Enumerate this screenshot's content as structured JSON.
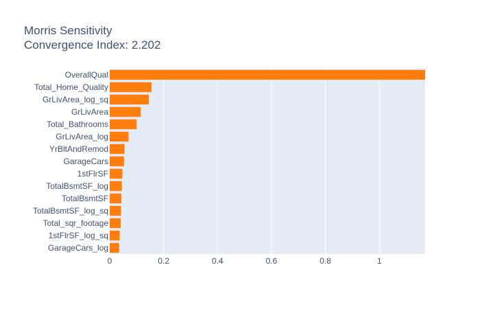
{
  "chart_data": {
    "type": "bar",
    "orientation": "horizontal",
    "title": "Morris Sensitivity",
    "subtitle": "Convergence Index: 2.202",
    "categories": [
      "OverallQual",
      "Total_Home_Quality",
      "GrLivArea_log_sq",
      "GrLivArea",
      "Total_Bathrooms",
      "GrLivArea_log",
      "YrBltAndRemod",
      "GarageCars",
      "1stFlrSF",
      "TotalBsmtSF_log",
      "TotalBsmtSF",
      "TotalBsmtSF_log_sq",
      "Total_sqr_footage",
      "1stFlrSF_log_sq",
      "GarageCars_log"
    ],
    "values": [
      1.17,
      0.155,
      0.145,
      0.115,
      0.1,
      0.07,
      0.055,
      0.053,
      0.047,
      0.045,
      0.043,
      0.042,
      0.041,
      0.037,
      0.035
    ],
    "x_ticks": [
      0,
      0.2,
      0.4,
      0.6,
      0.8,
      1
    ],
    "x_tick_labels": [
      "0",
      "0.2",
      "0.4",
      "0.6",
      "0.8",
      "1"
    ],
    "xlim": [
      0,
      1.17
    ],
    "xlabel": "",
    "ylabel": "",
    "grid": true,
    "legend": "none",
    "colors": {
      "bar": "#ff7f0e",
      "plot_background": "#e5ecf6",
      "grid": "#ffffff",
      "text": "#3f4f75"
    }
  }
}
